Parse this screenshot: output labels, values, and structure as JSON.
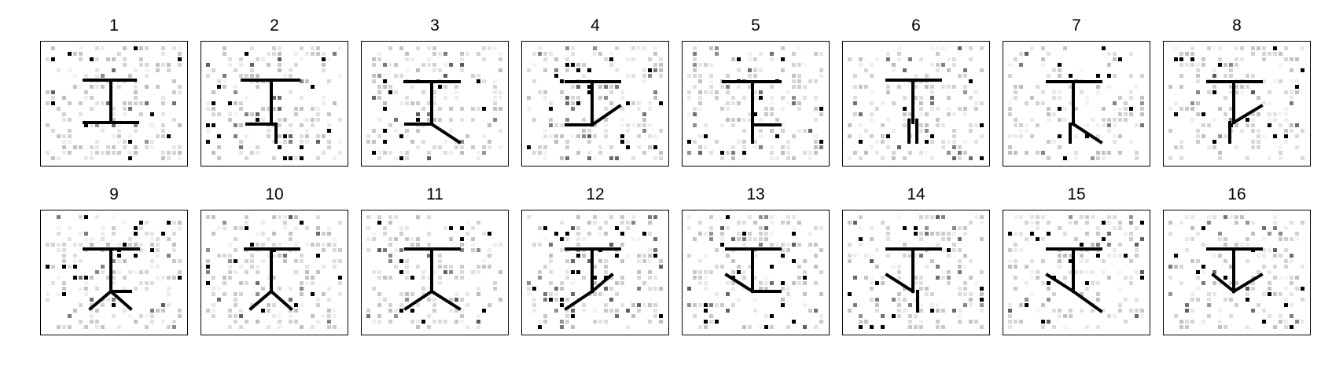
{
  "figure": {
    "panels": [
      {
        "label": "1",
        "mark": "top-bar, stem, bottom-bar"
      },
      {
        "label": "2",
        "mark": "top-bar, stem, bottom-left-short"
      },
      {
        "label": "3",
        "mark": "top-bar, stem, bottom-left-bar, right-diagonal-leg"
      },
      {
        "label": "4",
        "mark": "top-bar, stem, bottom-left-bar, right-diagonal-up"
      },
      {
        "label": "5",
        "mark": "top-bar, stem, bottom-right-bar"
      },
      {
        "label": "6",
        "mark": "top-bar, stem, split-legs"
      },
      {
        "label": "7",
        "mark": "top-bar, stem, right-diagonal-leg"
      },
      {
        "label": "8",
        "mark": "top-bar, stem, right-diagonal-up"
      },
      {
        "label": "9",
        "mark": "top-bar, stem, bottom-right-bar, two-diagonal-legs"
      },
      {
        "label": "10",
        "mark": "top-bar, stem, two-diagonal-legs"
      },
      {
        "label": "11",
        "mark": "top-bar, stem, two-diagonal-legs-wide"
      },
      {
        "label": "12",
        "mark": "top-bar, stem, left-diagonal, right-diagonal-up"
      },
      {
        "label": "13",
        "mark": "top-bar, stem, bottom-right-bar, left-diagonal"
      },
      {
        "label": "14",
        "mark": "top-bar, stem, left-diagonal, lower-stem"
      },
      {
        "label": "15",
        "mark": "top-bar, stem, left-diagonal, right-diagonal-leg"
      },
      {
        "label": "16",
        "mark": "top-bar, stem, left-diagonal, right-diagonal-up"
      }
    ],
    "colors": {
      "ink": "#000000",
      "frame": "#000000",
      "background": "#ffffff"
    }
  }
}
